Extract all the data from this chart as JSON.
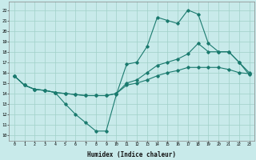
{
  "xlabel": "Humidex (Indice chaleur)",
  "ylabel": "",
  "bg_color": "#c8eaea",
  "grid_color": "#a0d0c8",
  "line_color": "#1a7a6e",
  "xlim": [
    -0.5,
    23.5
  ],
  "ylim": [
    9.5,
    22.8
  ],
  "xticks": [
    0,
    1,
    2,
    3,
    4,
    5,
    6,
    7,
    8,
    9,
    10,
    11,
    12,
    13,
    14,
    15,
    16,
    17,
    18,
    19,
    20,
    21,
    22,
    23
  ],
  "yticks": [
    10,
    11,
    12,
    13,
    14,
    15,
    16,
    17,
    18,
    19,
    20,
    21,
    22
  ],
  "series1": [
    [
      0,
      15.7
    ],
    [
      1,
      14.8
    ],
    [
      2,
      14.4
    ],
    [
      3,
      14.3
    ],
    [
      4,
      14.1
    ],
    [
      5,
      13.0
    ],
    [
      6,
      12.0
    ],
    [
      7,
      11.2
    ],
    [
      8,
      10.4
    ],
    [
      9,
      10.4
    ],
    [
      10,
      13.9
    ],
    [
      11,
      16.8
    ],
    [
      12,
      17.0
    ],
    [
      13,
      18.5
    ],
    [
      14,
      21.3
    ],
    [
      15,
      21.0
    ],
    [
      16,
      20.7
    ],
    [
      17,
      22.0
    ],
    [
      18,
      21.6
    ],
    [
      19,
      18.8
    ],
    [
      20,
      18.0
    ],
    [
      21,
      18.0
    ],
    [
      22,
      17.0
    ],
    [
      23,
      16.0
    ]
  ],
  "series2": [
    [
      0,
      15.7
    ],
    [
      1,
      14.8
    ],
    [
      2,
      14.4
    ],
    [
      3,
      14.3
    ],
    [
      4,
      14.1
    ],
    [
      5,
      14.0
    ],
    [
      6,
      13.9
    ],
    [
      7,
      13.8
    ],
    [
      8,
      13.8
    ],
    [
      9,
      13.8
    ],
    [
      10,
      14.0
    ],
    [
      11,
      15.0
    ],
    [
      12,
      15.3
    ],
    [
      13,
      16.0
    ],
    [
      14,
      16.7
    ],
    [
      15,
      17.0
    ],
    [
      16,
      17.3
    ],
    [
      17,
      17.8
    ],
    [
      18,
      18.8
    ],
    [
      19,
      18.0
    ],
    [
      20,
      18.0
    ],
    [
      21,
      18.0
    ],
    [
      22,
      17.0
    ],
    [
      23,
      15.8
    ]
  ],
  "series3": [
    [
      0,
      15.7
    ],
    [
      1,
      14.8
    ],
    [
      2,
      14.4
    ],
    [
      3,
      14.3
    ],
    [
      4,
      14.1
    ],
    [
      5,
      14.0
    ],
    [
      6,
      13.9
    ],
    [
      7,
      13.8
    ],
    [
      8,
      13.8
    ],
    [
      9,
      13.8
    ],
    [
      10,
      14.0
    ],
    [
      11,
      14.8
    ],
    [
      12,
      15.0
    ],
    [
      13,
      15.3
    ],
    [
      14,
      15.7
    ],
    [
      15,
      16.0
    ],
    [
      16,
      16.2
    ],
    [
      17,
      16.5
    ],
    [
      18,
      16.5
    ],
    [
      19,
      16.5
    ],
    [
      20,
      16.5
    ],
    [
      21,
      16.3
    ],
    [
      22,
      16.0
    ],
    [
      23,
      15.9
    ]
  ]
}
